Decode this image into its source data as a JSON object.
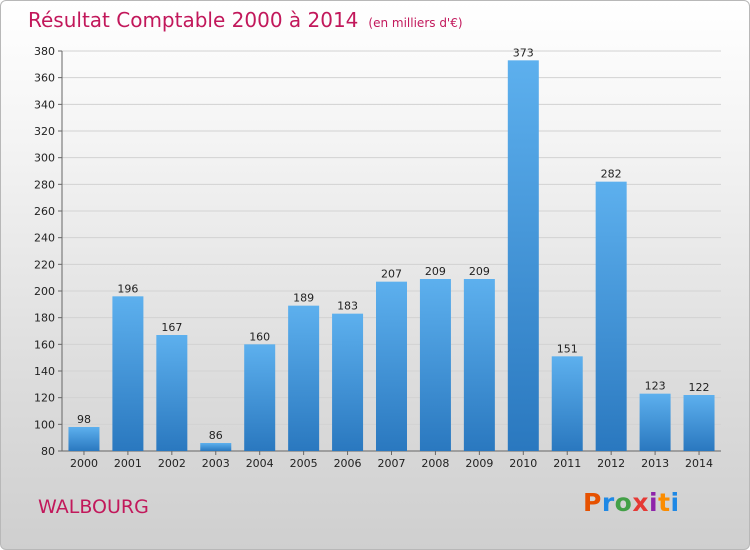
{
  "chart_data": {
    "type": "bar",
    "title": "Résultat Comptable 2000 à 2014",
    "subtitle": "(en milliers d'€)",
    "categories": [
      "2000",
      "2001",
      "2002",
      "2003",
      "2004",
      "2005",
      "2006",
      "2007",
      "2008",
      "2009",
      "2010",
      "2011",
      "2012",
      "2013",
      "2014"
    ],
    "values": [
      98,
      196,
      167,
      86,
      160,
      189,
      183,
      207,
      209,
      209,
      373,
      151,
      282,
      123,
      122
    ],
    "ylim": [
      80,
      380
    ],
    "yticks": [
      80,
      100,
      120,
      140,
      160,
      180,
      200,
      220,
      240,
      260,
      280,
      300,
      320,
      340,
      360,
      380
    ],
    "grid": true,
    "bar_color": "#3d8fd6",
    "legend": "none"
  },
  "footer": {
    "place_name": "WALBOURG",
    "logo_text": "Proxiti"
  },
  "colors": {
    "title": "#c2185b",
    "logo_letters": [
      "#e65100",
      "#1e88e5",
      "#43a047",
      "#e53935",
      "#8e24aa",
      "#fb8c00",
      "#1e88e5"
    ]
  }
}
